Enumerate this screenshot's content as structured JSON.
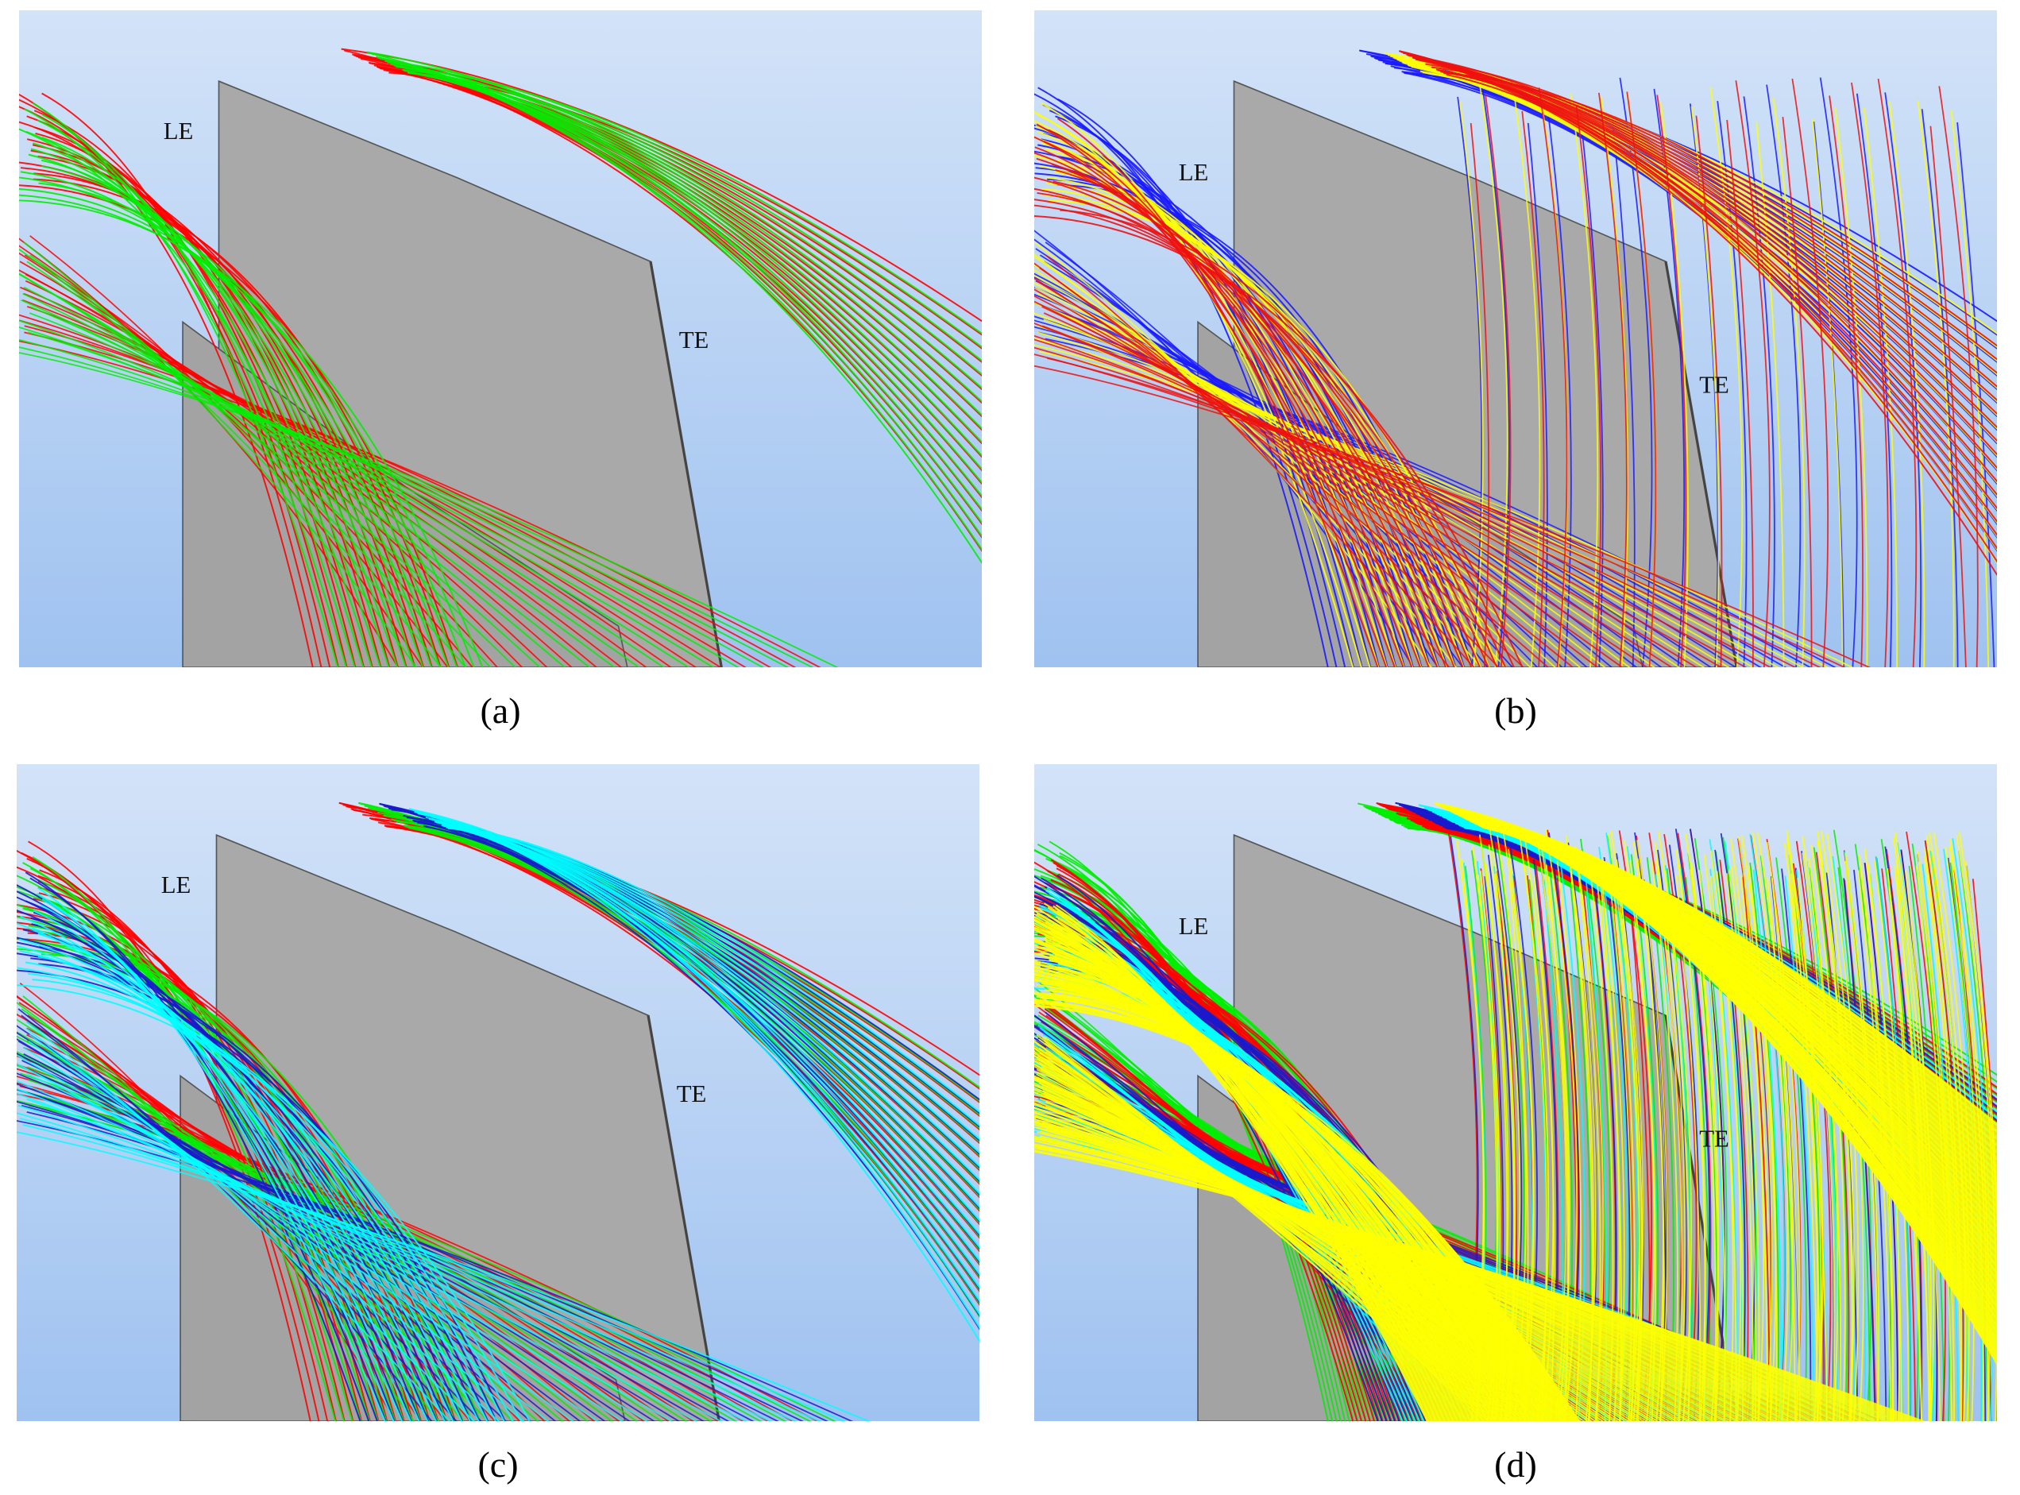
{
  "panels": [
    {
      "label": "(a)",
      "le": "LE",
      "te": "TE",
      "colors": [
        "#ff0000",
        "#00ee00"
      ],
      "le_pos": "left",
      "te_pos": "upper"
    },
    {
      "label": "(b)",
      "le": "LE",
      "te": "TE",
      "colors": [
        "#1a1aff",
        "#ffff00",
        "#ee1111"
      ],
      "le_pos": "upper",
      "te_pos": "lower"
    },
    {
      "label": "(c)",
      "le": "LE",
      "te": "TE",
      "colors": [
        "#ff0000",
        "#00ee00",
        "#1a1acc",
        "#00ffff"
      ],
      "le_pos": "left",
      "te_pos": "upper"
    },
    {
      "label": "(d)",
      "le": "LE",
      "te": "TE",
      "colors": [
        "#00ee00",
        "#ff0000",
        "#1a1acc",
        "#00ffff",
        "#ffff00"
      ],
      "le_pos": "upper",
      "te_pos": "lower"
    }
  ]
}
